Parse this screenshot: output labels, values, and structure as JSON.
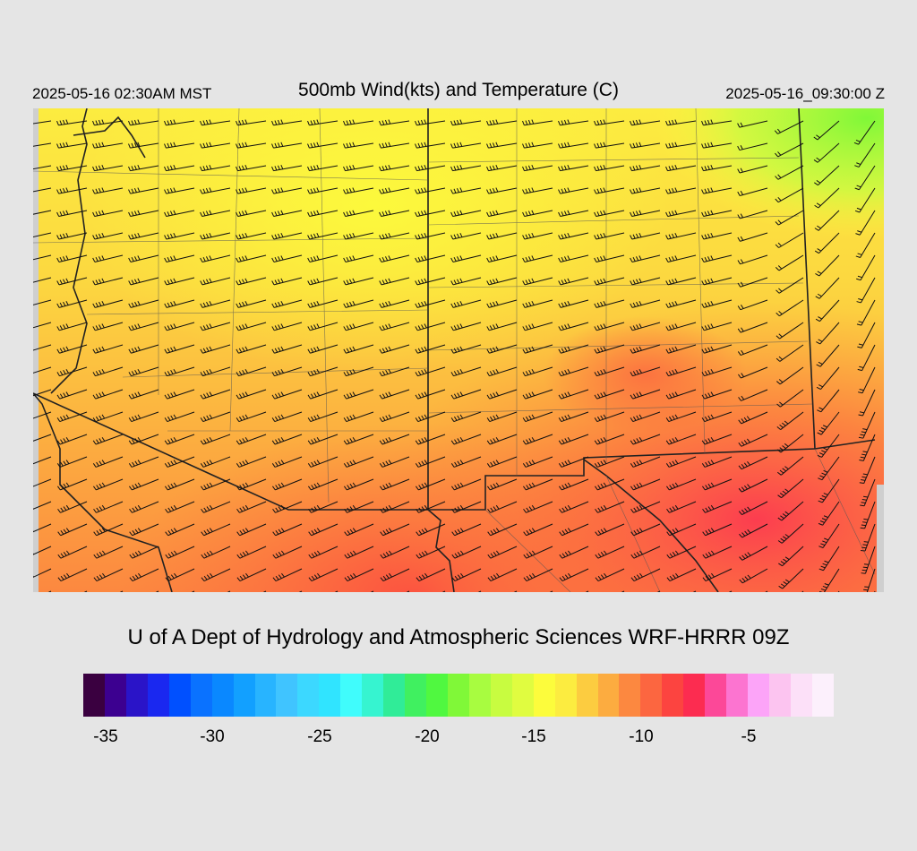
{
  "header": {
    "local_time": "2025-05-16 02:30AM MST",
    "title": "500mb Wind(kts) and Temperature (C)",
    "valid_time": "2025-05-16_09:30:00 Z"
  },
  "credit": "U of A Dept of Hydrology and Atmospheric Sciences WRF-HRRR 09Z",
  "colorbar": {
    "colors": [
      "#3a0040",
      "#3c0090",
      "#2a14c8",
      "#1a28f0",
      "#0050ff",
      "#0a72ff",
      "#0a88ff",
      "#12a0ff",
      "#28b4ff",
      "#40c4ff",
      "#3cd8ff",
      "#30e4ff",
      "#40fcfc",
      "#36f4d0",
      "#30ec98",
      "#40f060",
      "#50f840",
      "#80f838",
      "#a8fc40",
      "#c8fc40",
      "#e0fc40",
      "#fcfc3c",
      "#fcec40",
      "#fccc40",
      "#fcac40",
      "#fc8840",
      "#fc6640",
      "#fc4440",
      "#fc2c50",
      "#fc4898",
      "#fc74d0",
      "#fca4f8",
      "#fcc4f0",
      "#fce0f8",
      "#fcf0fc"
    ],
    "ticks": [
      "-35",
      "-30",
      "-25",
      "-20",
      "-15",
      "-10",
      "-5"
    ]
  }
}
